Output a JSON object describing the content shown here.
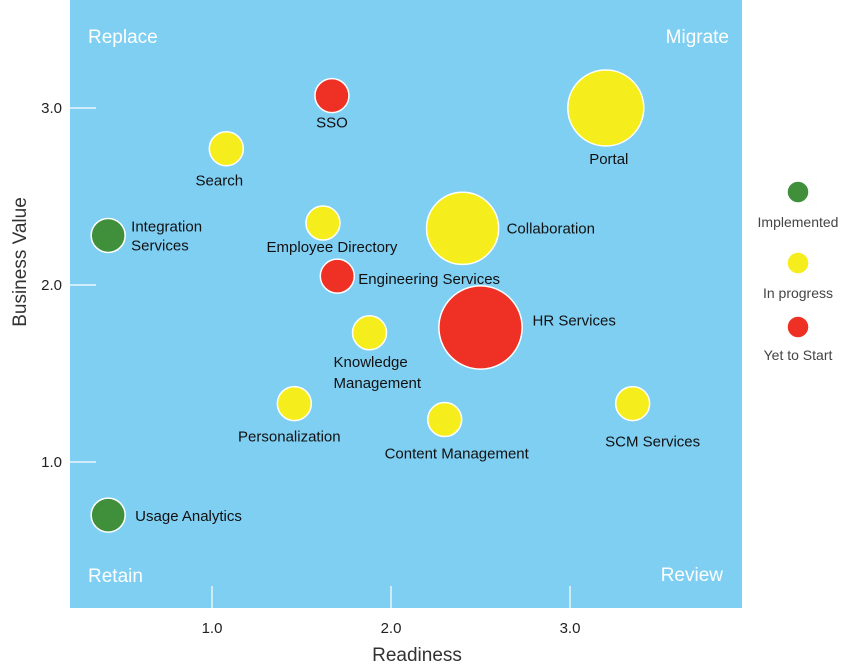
{
  "chart_data": {
    "type": "bubble",
    "xlabel": "Readiness",
    "ylabel": "Business Value",
    "x_ticks": [
      {
        "value": 1.0,
        "label": "1.0"
      },
      {
        "value": 2.0,
        "label": "2.0"
      },
      {
        "value": 3.0,
        "label": "3.0"
      }
    ],
    "y_ticks": [
      {
        "value": 1.0,
        "label": "1.0"
      },
      {
        "value": 2.0,
        "label": "2.0"
      },
      {
        "value": 3.0,
        "label": "3.0"
      }
    ],
    "xlim": [
      0.2,
      4.0
    ],
    "ylim": [
      0.2,
      3.6
    ],
    "quadrants": {
      "top_left": "Replace",
      "top_right": "Migrate",
      "bottom_left": "Retain",
      "bottom_right": "Review"
    },
    "background_color": "#7fcff3",
    "legend": [
      {
        "status": "implemented",
        "label": "Implemented",
        "color": "#3f8f3b"
      },
      {
        "status": "in_progress",
        "label": "In progress",
        "color": "#f5ee1c"
      },
      {
        "status": "yet_to_start",
        "label": "Yet to Start",
        "color": "#ee3124"
      }
    ],
    "points": [
      {
        "name": "SSO",
        "label_lines": [
          "SSO"
        ],
        "x": 1.67,
        "y": 3.07,
        "size": 1,
        "status": "yet_to_start"
      },
      {
        "name": "Search",
        "label_lines": [
          "Search"
        ],
        "x": 1.08,
        "y": 2.77,
        "size": 1,
        "status": "in_progress"
      },
      {
        "name": "Portal",
        "label_lines": [
          "Portal"
        ],
        "x": 3.2,
        "y": 3.0,
        "size": 5,
        "status": "in_progress"
      },
      {
        "name": "Integration Services",
        "label_lines": [
          "Integration",
          "Services"
        ],
        "x": 0.42,
        "y": 2.28,
        "size": 1,
        "status": "implemented"
      },
      {
        "name": "Employee Directory",
        "label_lines": [
          "Employee Directory"
        ],
        "x": 1.62,
        "y": 2.35,
        "size": 1,
        "status": "in_progress"
      },
      {
        "name": "Collaboration",
        "label_lines": [
          "Collaboration"
        ],
        "x": 2.4,
        "y": 2.32,
        "size": 4.5,
        "status": "in_progress"
      },
      {
        "name": "Engineering Services",
        "label_lines": [
          "Engineering Services"
        ],
        "x": 1.7,
        "y": 2.05,
        "size": 1,
        "status": "yet_to_start"
      },
      {
        "name": "HR Services",
        "label_lines": [
          "HR Services"
        ],
        "x": 2.5,
        "y": 1.76,
        "size": 6,
        "status": "yet_to_start"
      },
      {
        "name": "Knowledge Management",
        "label_lines": [
          "Knowledge",
          "Management"
        ],
        "x": 1.88,
        "y": 1.73,
        "size": 1,
        "status": "in_progress"
      },
      {
        "name": "Personalization",
        "label_lines": [
          "Personalization"
        ],
        "x": 1.46,
        "y": 1.33,
        "size": 1,
        "status": "in_progress"
      },
      {
        "name": "Content Management",
        "label_lines": [
          "Content Management"
        ],
        "x": 2.3,
        "y": 1.24,
        "size": 1,
        "status": "in_progress"
      },
      {
        "name": "SCM Services",
        "label_lines": [
          "SCM Services"
        ],
        "x": 3.35,
        "y": 1.33,
        "size": 1,
        "status": "in_progress"
      },
      {
        "name": "Usage Analytics",
        "label_lines": [
          "Usage Analytics"
        ],
        "x": 0.42,
        "y": 0.7,
        "size": 1,
        "status": "implemented"
      }
    ]
  }
}
